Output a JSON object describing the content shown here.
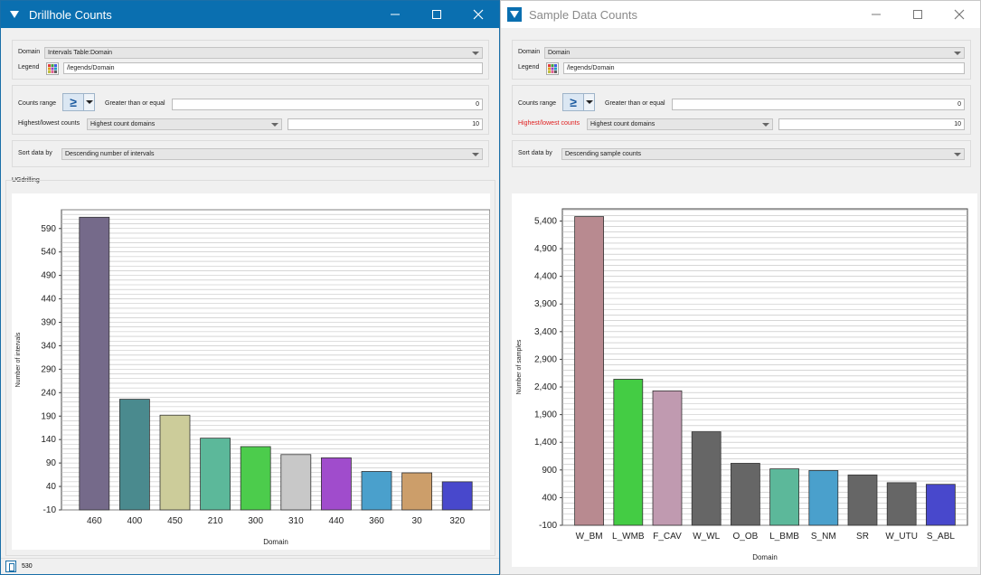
{
  "left_window": {
    "title": "Drillhole Counts",
    "domain_label": "Domain",
    "domain_value": "Intervals Table:Domain",
    "legend_label": "Legend",
    "legend_value": "/legends/Domain",
    "counts_range_label": "Counts range",
    "counts_range_operator": "≥",
    "gte_label": "Greater than or equal",
    "gte_value": "0",
    "highest_lowest_label": "Highest/lowest counts",
    "highest_lowest_value": "Highest count domains",
    "highest_lowest_count": "10",
    "sort_label": "Sort data by",
    "sort_value": "Descending number of intervals",
    "group_label": "UGdrilling",
    "status_text": "530"
  },
  "right_window": {
    "title": "Sample Data Counts",
    "domain_label": "Domain",
    "domain_value": "Domain",
    "legend_label": "Legend",
    "legend_value": "/legends/Domain",
    "counts_range_label": "Counts range",
    "counts_range_operator": "≥",
    "gte_label": "Greater than or equal",
    "gte_value": "0",
    "highest_lowest_label": "Highest/lowest counts",
    "highest_lowest_value": "Highest count domains",
    "highest_lowest_count": "10",
    "sort_label": "Sort data by",
    "sort_value": "Descending sample counts"
  },
  "colors": {
    "left_titlebar": "#0a6fb0",
    "right_titlebar": "#ffffff",
    "highlight_label": "#e02020"
  },
  "chart_data": [
    {
      "type": "bar",
      "categories": [
        "460",
        "400",
        "450",
        "210",
        "300",
        "310",
        "440",
        "360",
        "30",
        "320"
      ],
      "values": [
        614,
        226,
        192,
        143,
        125,
        108,
        101,
        72,
        69,
        50
      ],
      "colors": [
        "#756a8a",
        "#4a8a8e",
        "#cccc9a",
        "#5cb89a",
        "#4ccc4c",
        "#c8c8c8",
        "#a04ccc",
        "#4aa0cc",
        "#cc9e6a",
        "#4848cc"
      ],
      "ticks": [
        -10,
        40,
        90,
        140,
        190,
        240,
        290,
        340,
        390,
        440,
        490,
        540,
        590
      ],
      "tick_labels": [
        "-10",
        "40",
        "90",
        "140",
        "190",
        "240",
        "290",
        "340",
        "390",
        "440",
        "490",
        "540",
        "590"
      ],
      "ylim": [
        -10,
        630
      ],
      "xlabel": "Domain",
      "ylabel": "Number of intervals",
      "grid": true
    },
    {
      "type": "bar",
      "categories": [
        "W_BM",
        "L_WMB",
        "F_CAV",
        "W_WL",
        "O_OB",
        "L_BMB",
        "S_NM",
        "SR",
        "W_UTU",
        "S_ABL"
      ],
      "values": [
        5480,
        2540,
        2330,
        1590,
        1020,
        920,
        890,
        810,
        670,
        640
      ],
      "colors": [
        "#b88a90",
        "#44cc44",
        "#c09ab0",
        "#666666",
        "#666666",
        "#5cb89a",
        "#4aa0cc",
        "#666666",
        "#666666",
        "#4848cc"
      ],
      "ticks": [
        -100,
        400,
        900,
        1400,
        1900,
        2400,
        2900,
        3400,
        3900,
        4400,
        4900,
        5400
      ],
      "tick_labels": [
        "-100",
        "400",
        "900",
        "1,400",
        "1,900",
        "2,400",
        "2,900",
        "3,400",
        "3,900",
        "4,400",
        "4,900",
        "5,400"
      ],
      "ylim": [
        -100,
        5620
      ],
      "xlabel": "Domain",
      "ylabel": "Number of samples",
      "grid": true
    }
  ]
}
